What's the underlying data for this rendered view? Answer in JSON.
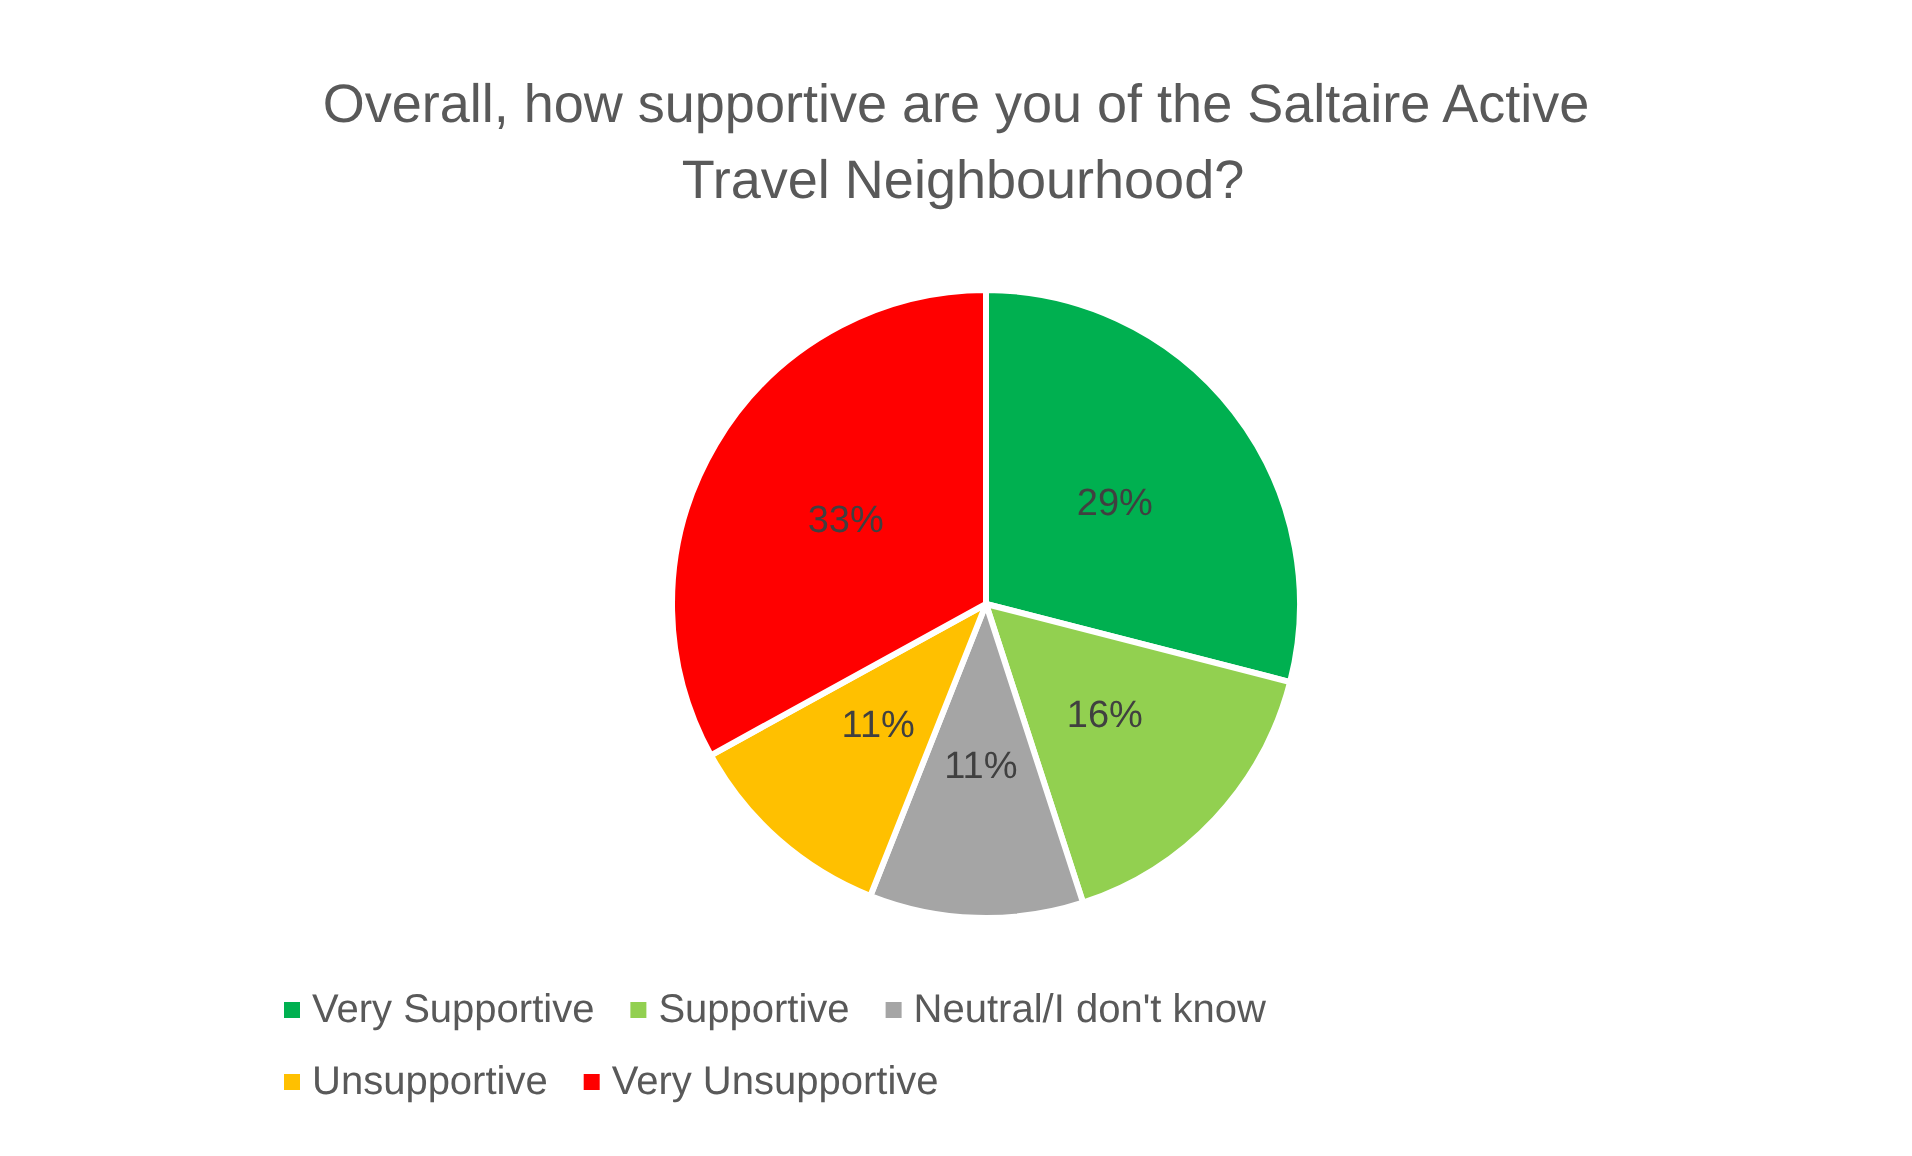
{
  "chart_data": {
    "type": "pie",
    "title": "Overall, how supportive are you of the Saltaire Active Travel Neighbourhood?",
    "categories": [
      "Very Supportive",
      "Supportive",
      "Neutral/I don't know",
      "Unsupportive",
      "Very Unsupportive"
    ],
    "values": [
      29,
      16,
      11,
      11,
      33
    ],
    "colors": [
      "#00b050",
      "#92d050",
      "#a5a5a5",
      "#ffc000",
      "#ff0000"
    ],
    "value_labels": [
      "29%",
      "16%",
      "11%",
      "11%",
      "33%"
    ],
    "legend": "bottom"
  }
}
